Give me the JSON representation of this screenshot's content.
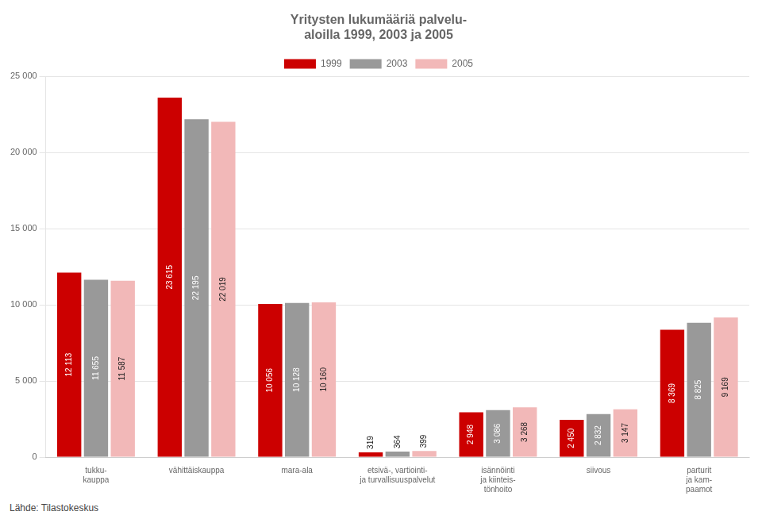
{
  "chart_data": {
    "type": "bar",
    "title": "Yritysten lukumääriä palvelu-\naloilla 1999, 2003 ja 2005",
    "categories": [
      "tukku-\nkauppa",
      "vähittäiskauppa",
      "mara-ala",
      "etsivä-, vartiointi-\nja turvallisuuspalvelut",
      "isännöinti\nja kiinteis-\ntönhoito",
      "siivous",
      "parturit\nja kam-\npaamot"
    ],
    "series": [
      {
        "name": "1999",
        "color": "#cc0000",
        "values": [
          12113,
          23615,
          10056,
          319,
          2948,
          2450,
          8369
        ],
        "value_labels": [
          "12 113",
          "23 615",
          "10 056",
          "319",
          "2 948",
          "2 450",
          "8 369"
        ]
      },
      {
        "name": "2003",
        "color": "#999999",
        "values": [
          11655,
          22195,
          10128,
          364,
          3086,
          2832,
          8825
        ],
        "value_labels": [
          "11 655",
          "22 195",
          "10 128",
          "364",
          "3 086",
          "2 832",
          "8 825"
        ]
      },
      {
        "name": "2005",
        "color": "#f2b8b8",
        "values": [
          11587,
          22019,
          10160,
          399,
          3268,
          3147,
          9169
        ],
        "value_labels": [
          "11 587",
          "22 019",
          "10 160",
          "399",
          "3 268",
          "3 147",
          "9 169"
        ]
      }
    ],
    "ylim": [
      0,
      25000
    ],
    "yticks": [
      0,
      {
        "value": 5000,
        "label": "5 000"
      },
      {
        "value": 10000,
        "label": "10 000"
      },
      {
        "value": 15000,
        "label": "15 000"
      },
      {
        "value": 20000,
        "label": "20 000"
      },
      {
        "value": 25000,
        "label": "25 000"
      }
    ],
    "grid": true,
    "legend": "top",
    "data_labels": true,
    "annotations": [
      "Lähde: Tilastokeskus"
    ]
  }
}
